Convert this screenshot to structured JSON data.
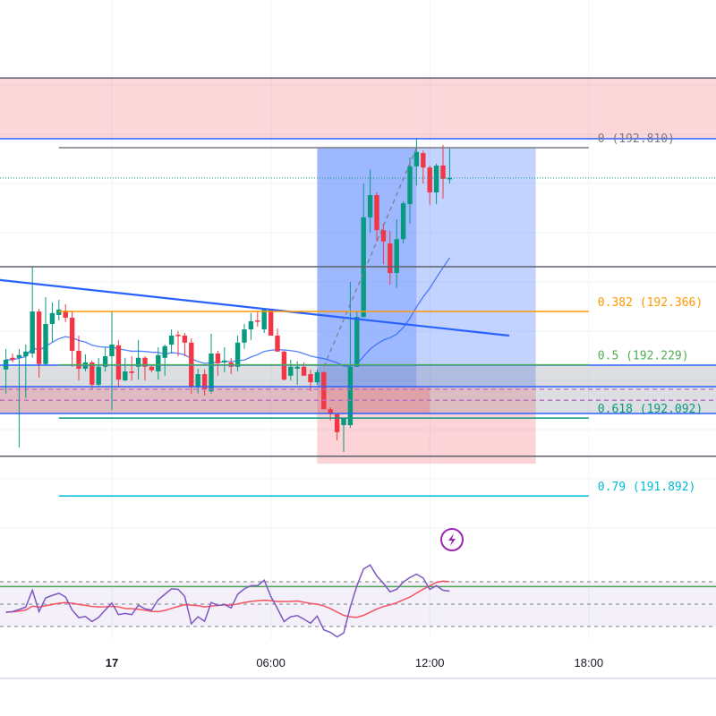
{
  "chart_data": {
    "type": "candlestick",
    "colors": {
      "up": "#089981",
      "down": "#f23645",
      "ma": "#2962ff",
      "rsi": "#7e57c2",
      "rsi_ma": "#f7525f"
    },
    "time_axis": {
      "ticks": [
        {
          "t": "00:00",
          "label": "17",
          "bold": true
        },
        {
          "t": "06:00",
          "label": "06:00"
        },
        {
          "t": "12:00",
          "label": "12:00"
        },
        {
          "t": "18:00",
          "label": "18:00"
        }
      ]
    },
    "current_price": 192.709,
    "candles": [
      {
        "t": "20:00",
        "o": 192.217,
        "h": 192.27,
        "l": 192.155,
        "c": 192.242
      },
      {
        "t": "20:15",
        "o": 192.247,
        "h": 192.258,
        "l": 192.235,
        "c": 192.242
      },
      {
        "t": "20:30",
        "o": 192.247,
        "h": 192.27,
        "l": 192.017,
        "c": 192.254
      },
      {
        "t": "20:45",
        "o": 192.251,
        "h": 192.281,
        "l": 192.143,
        "c": 192.263
      },
      {
        "t": "21:00",
        "o": 192.258,
        "h": 192.481,
        "l": 192.247,
        "c": 192.366
      },
      {
        "t": "21:15",
        "o": 192.366,
        "h": 192.373,
        "l": 192.196,
        "c": 192.231
      },
      {
        "t": "21:30",
        "o": 192.231,
        "h": 192.403,
        "l": 192.228,
        "c": 192.334
      },
      {
        "t": "21:45",
        "o": 192.334,
        "h": 192.389,
        "l": 192.288,
        "c": 192.362
      },
      {
        "t": "22:00",
        "o": 192.357,
        "h": 192.396,
        "l": 192.343,
        "c": 192.371
      },
      {
        "t": "22:15",
        "o": 192.368,
        "h": 192.385,
        "l": 192.339,
        "c": 192.35
      },
      {
        "t": "22:30",
        "o": 192.35,
        "h": 192.368,
        "l": 192.224,
        "c": 192.265
      },
      {
        "t": "22:45",
        "o": 192.265,
        "h": 192.304,
        "l": 192.189,
        "c": 192.219
      },
      {
        "t": "23:00",
        "o": 192.219,
        "h": 192.256,
        "l": 192.212,
        "c": 192.235
      },
      {
        "t": "23:15",
        "o": 192.235,
        "h": 192.24,
        "l": 192.166,
        "c": 192.178
      },
      {
        "t": "23:30",
        "o": 192.178,
        "h": 192.247,
        "l": 192.173,
        "c": 192.224
      },
      {
        "t": "23:45",
        "o": 192.224,
        "h": 192.274,
        "l": 192.212,
        "c": 192.251
      },
      {
        "t": "00:00",
        "o": 192.251,
        "h": 192.366,
        "l": 192.113,
        "c": 192.281
      },
      {
        "t": "00:15",
        "o": 192.279,
        "h": 192.293,
        "l": 192.171,
        "c": 192.191
      },
      {
        "t": "00:30",
        "o": 192.189,
        "h": 192.247,
        "l": 192.187,
        "c": 192.212
      },
      {
        "t": "00:45",
        "o": 192.212,
        "h": 192.251,
        "l": 192.189,
        "c": 192.208
      },
      {
        "t": "01:00",
        "o": 192.224,
        "h": 192.293,
        "l": 192.191,
        "c": 192.247
      },
      {
        "t": "01:15",
        "o": 192.247,
        "h": 192.251,
        "l": 192.189,
        "c": 192.224
      },
      {
        "t": "01:30",
        "o": 192.224,
        "h": 192.228,
        "l": 192.21,
        "c": 192.215
      },
      {
        "t": "01:45",
        "o": 192.212,
        "h": 192.274,
        "l": 192.191,
        "c": 192.254
      },
      {
        "t": "02:00",
        "o": 192.247,
        "h": 192.281,
        "l": 192.201,
        "c": 192.277
      },
      {
        "t": "02:15",
        "o": 192.281,
        "h": 192.32,
        "l": 192.258,
        "c": 192.304
      },
      {
        "t": "02:30",
        "o": 192.306,
        "h": 192.316,
        "l": 192.251,
        "c": 192.304
      },
      {
        "t": "02:45",
        "o": 192.304,
        "h": 192.311,
        "l": 192.251,
        "c": 192.286
      },
      {
        "t": "03:00",
        "o": 192.286,
        "h": 192.297,
        "l": 192.155,
        "c": 192.173
      },
      {
        "t": "03:15",
        "o": 192.171,
        "h": 192.219,
        "l": 192.155,
        "c": 192.205
      },
      {
        "t": "03:30",
        "o": 192.205,
        "h": 192.217,
        "l": 192.15,
        "c": 192.166
      },
      {
        "t": "03:45",
        "o": 192.161,
        "h": 192.309,
        "l": 192.155,
        "c": 192.258
      },
      {
        "t": "04:00",
        "o": 192.258,
        "h": 192.265,
        "l": 192.201,
        "c": 192.233
      },
      {
        "t": "04:15",
        "o": 192.235,
        "h": 192.274,
        "l": 192.21,
        "c": 192.24
      },
      {
        "t": "04:30",
        "o": 192.235,
        "h": 192.247,
        "l": 192.205,
        "c": 192.224
      },
      {
        "t": "04:45",
        "o": 192.224,
        "h": 192.304,
        "l": 192.212,
        "c": 192.286
      },
      {
        "t": "05:00",
        "o": 192.286,
        "h": 192.334,
        "l": 192.27,
        "c": 192.32
      },
      {
        "t": "05:15",
        "o": 192.32,
        "h": 192.362,
        "l": 192.293,
        "c": 192.341
      },
      {
        "t": "05:30",
        "o": 192.343,
        "h": 192.368,
        "l": 192.327,
        "c": 192.341
      },
      {
        "t": "05:45",
        "o": 192.32,
        "h": 192.373,
        "l": 192.311,
        "c": 192.371
      },
      {
        "t": "06:00",
        "o": 192.371,
        "h": 192.373,
        "l": 192.304,
        "c": 192.304
      },
      {
        "t": "06:15",
        "o": 192.304,
        "h": 192.322,
        "l": 192.263,
        "c": 192.263
      },
      {
        "t": "06:30",
        "o": 192.263,
        "h": 192.265,
        "l": 192.189,
        "c": 192.191
      },
      {
        "t": "06:45",
        "o": 192.201,
        "h": 192.242,
        "l": 192.189,
        "c": 192.224
      },
      {
        "t": "07:00",
        "o": 192.219,
        "h": 192.238,
        "l": 192.178,
        "c": 192.224
      },
      {
        "t": "07:15",
        "o": 192.224,
        "h": 192.235,
        "l": 192.201,
        "c": 192.201
      },
      {
        "t": "07:30",
        "o": 192.205,
        "h": 192.217,
        "l": 192.161,
        "c": 192.184
      },
      {
        "t": "07:45",
        "o": 192.184,
        "h": 192.217,
        "l": 192.178,
        "c": 192.21
      },
      {
        "t": "08:00",
        "o": 192.21,
        "h": 192.212,
        "l": 192.115,
        "c": 192.115
      },
      {
        "t": "08:15",
        "o": 192.115,
        "h": 192.12,
        "l": 192.086,
        "c": 192.102
      },
      {
        "t": "08:30",
        "o": 192.102,
        "h": 192.104,
        "l": 192.035,
        "c": 192.056
      },
      {
        "t": "08:45",
        "o": 192.074,
        "h": 192.093,
        "l": 192.005,
        "c": 192.093
      },
      {
        "t": "09:00",
        "o": 192.074,
        "h": 192.442,
        "l": 192.067,
        "c": 192.224
      },
      {
        "t": "09:15",
        "o": 192.224,
        "h": 192.366,
        "l": 192.224,
        "c": 192.352
      },
      {
        "t": "09:30",
        "o": 192.352,
        "h": 192.695,
        "l": 192.35,
        "c": 192.608
      },
      {
        "t": "09:45",
        "o": 192.608,
        "h": 192.73,
        "l": 192.569,
        "c": 192.665
      },
      {
        "t": "10:00",
        "o": 192.665,
        "h": 192.672,
        "l": 192.546,
        "c": 192.575
      },
      {
        "t": "10:15",
        "o": 192.575,
        "h": 192.592,
        "l": 192.488,
        "c": 192.546
      },
      {
        "t": "10:30",
        "o": 192.541,
        "h": 192.573,
        "l": 192.435,
        "c": 192.465
      },
      {
        "t": "10:45",
        "o": 192.465,
        "h": 192.603,
        "l": 192.426,
        "c": 192.552
      },
      {
        "t": "11:00",
        "o": 192.552,
        "h": 192.649,
        "l": 192.541,
        "c": 192.644
      },
      {
        "t": "11:15",
        "o": 192.642,
        "h": 192.762,
        "l": 192.592,
        "c": 192.739
      },
      {
        "t": "11:30",
        "o": 192.739,
        "h": 192.81,
        "l": 192.69,
        "c": 192.776
      },
      {
        "t": "11:45",
        "o": 192.773,
        "h": 192.78,
        "l": 192.695,
        "c": 192.736
      },
      {
        "t": "12:00",
        "o": 192.736,
        "h": 192.741,
        "l": 192.64,
        "c": 192.672
      },
      {
        "t": "12:15",
        "o": 192.672,
        "h": 192.746,
        "l": 192.642,
        "c": 192.741
      },
      {
        "t": "12:30",
        "o": 192.741,
        "h": 192.794,
        "l": 192.656,
        "c": 192.707
      },
      {
        "t": "12:45",
        "o": 192.707,
        "h": 192.787,
        "l": 192.695,
        "c": 192.709
      }
    ],
    "rsi": {
      "levels": [
        70,
        50,
        30
      ],
      "values": [
        42.8,
        43.3,
        45.2,
        47.4,
        62.4,
        43.3,
        55.6,
        57.8,
        59.7,
        56.4,
        44.7,
        37.9,
        39,
        34.4,
        38.2,
        44.7,
        51,
        40.6,
        41.7,
        40.6,
        49,
        45.8,
        44.7,
        53.9,
        58.8,
        63.7,
        63.2,
        56.9,
        32.4,
        38.7,
        34.6,
        51.5,
        48.8,
        49.6,
        46.6,
        58.8,
        63.7,
        66.5,
        66.5,
        71.4,
        56.9,
        46,
        34.4,
        38.7,
        39.8,
        36.5,
        33,
        39.3,
        27,
        24.8,
        20.7,
        24.3,
        47.4,
        66.5,
        81.4,
        85,
        75.2,
        68.6,
        61,
        63.2,
        69.7,
        73.8,
        76.8,
        73.3,
        63.2,
        66.5,
        62.4,
        61.6
      ]
    },
    "fibonacci": {
      "start": "22:00",
      "end": "18:00",
      "levels": [
        {
          "ratio": "0",
          "price": 192.81,
          "label": "0 (192.810)",
          "color": "#787b86"
        },
        {
          "ratio": "0.382",
          "price": 192.366,
          "label": "0.382 (192.366)",
          "color": "#ff9800"
        },
        {
          "ratio": "0.5",
          "price": 192.229,
          "label": "0.5 (192.229)",
          "color": "#4caf50"
        },
        {
          "ratio": "0.618",
          "price": 192.092,
          "label": "0.618 (192.092)",
          "color": "#089981"
        },
        {
          "ratio": "0.79",
          "price": 191.892,
          "label": "0.79 (191.892)",
          "color": "#00bcd4"
        }
      ]
    },
    "drawings": {
      "resistance_zone": {
        "top": 192.966,
        "bottom": 192.81,
        "color": "#f23645"
      },
      "horizontal_lines": [
        {
          "price": 192.966,
          "color": "#5d606b"
        },
        {
          "price": 192.81,
          "color": "#2962ff"
        },
        {
          "price": 192.481,
          "color": "#5d606b"
        },
        {
          "price": 191.994,
          "color": "#5d606b"
        },
        {
          "price": 191.659,
          "color": "#4caf50"
        }
      ],
      "support_zone": {
        "top": 192.228,
        "bottom": 192.104,
        "lines": [
          192.228,
          192.173,
          192.104
        ],
        "dashed": [
          192.166,
          192.138
        ]
      },
      "trendline": {
        "from": {
          "t": "19:45",
          "price": 192.447
        },
        "to": {
          "t": "15:00",
          "price": 192.304
        }
      },
      "long_position": {
        "start": "07:45",
        "filled_until": "11:30",
        "end": "16:00",
        "entry": 192.173,
        "target": 192.787,
        "stop": 191.975
      },
      "path": {
        "from": {
          "t": "08:00",
          "price": 192.224
        },
        "to": {
          "t": "11:30",
          "price": 192.787
        }
      }
    },
    "icons": {
      "event_marker": "lightning-icon"
    }
  }
}
